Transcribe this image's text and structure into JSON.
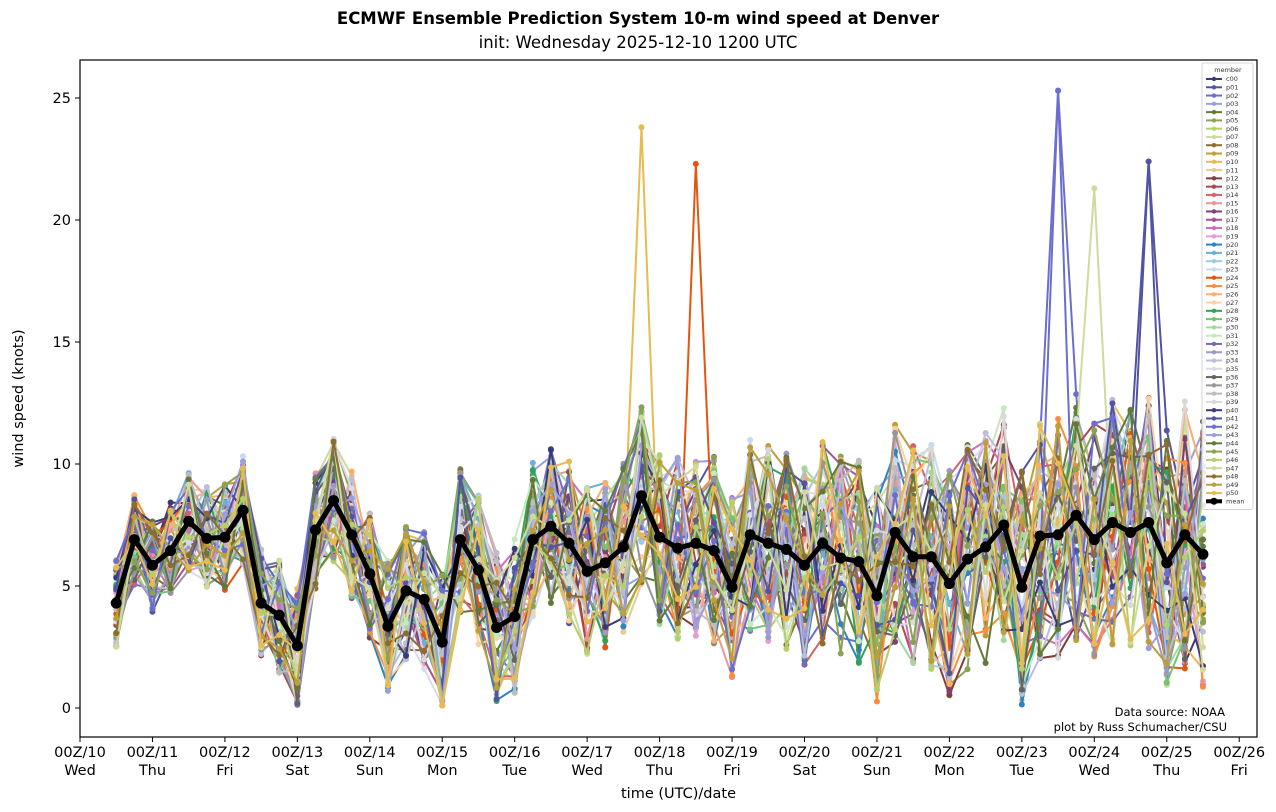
{
  "chart_data": {
    "type": "line",
    "title": "ECMWF Ensemble Prediction System 10-m wind speed at Denver",
    "subtitle": "init: Wednesday 2025-12-10 1200 UTC",
    "xlabel": "time (UTC)/date",
    "ylabel": "wind speed (knots)",
    "ylim": [
      -1.2,
      26.5
    ],
    "yticks": [
      0,
      5,
      10,
      15,
      20,
      25
    ],
    "xlim_days": [
      -0.02,
      16.2
    ],
    "xticks": [
      {
        "top": "00Z/10",
        "bottom": "Wed"
      },
      {
        "top": "00Z/11",
        "bottom": "Thu"
      },
      {
        "top": "00Z/12",
        "bottom": "Fri"
      },
      {
        "top": "00Z/13",
        "bottom": "Sat"
      },
      {
        "top": "00Z/14",
        "bottom": "Sun"
      },
      {
        "top": "00Z/15",
        "bottom": "Mon"
      },
      {
        "top": "00Z/16",
        "bottom": "Tue"
      },
      {
        "top": "00Z/17",
        "bottom": "Wed"
      },
      {
        "top": "00Z/18",
        "bottom": "Thu"
      },
      {
        "top": "00Z/19",
        "bottom": "Fri"
      },
      {
        "top": "00Z/20",
        "bottom": "Sat"
      },
      {
        "top": "00Z/21",
        "bottom": "Sun"
      },
      {
        "top": "00Z/22",
        "bottom": "Mon"
      },
      {
        "top": "00Z/23",
        "bottom": "Tue"
      },
      {
        "top": "00Z/24",
        "bottom": "Wed"
      },
      {
        "top": "00Z/25",
        "bottom": "Thu"
      },
      {
        "top": "00Z/26",
        "bottom": "Fri"
      }
    ],
    "grid": false,
    "legend": {
      "title": "member",
      "placement": "top-right"
    },
    "time_step_hours": 6,
    "first_valid": "12Z/10",
    "mean": [
      4.3,
      6.9,
      5.85,
      6.45,
      7.65,
      6.95,
      7.0,
      8.1,
      4.3,
      3.8,
      2.55,
      7.3,
      8.5,
      7.1,
      5.5,
      3.35,
      4.8,
      4.45,
      2.7,
      6.9,
      5.65,
      3.3,
      3.75,
      6.9,
      7.45,
      6.75,
      5.6,
      5.95,
      6.6,
      8.7,
      7.0,
      6.55,
      6.75,
      6.45,
      4.95,
      7.1,
      6.75,
      6.5,
      5.85,
      6.75,
      6.15,
      6.0,
      4.6,
      7.2,
      6.2,
      6.2,
      5.1,
      6.1,
      6.6,
      7.5,
      4.95,
      7.05,
      7.1,
      7.9,
      6.9,
      7.6,
      7.2,
      7.6,
      5.95,
      7.1,
      6.3
    ],
    "members": [
      {
        "name": "c00",
        "color": "#393b79"
      },
      {
        "name": "p01",
        "color": "#5254a3"
      },
      {
        "name": "p02",
        "color": "#6b6ecf"
      },
      {
        "name": "p03",
        "color": "#9c9ede"
      },
      {
        "name": "p04",
        "color": "#637939"
      },
      {
        "name": "p05",
        "color": "#8ca252"
      },
      {
        "name": "p06",
        "color": "#b5cf6b"
      },
      {
        "name": "p07",
        "color": "#cedb9c"
      },
      {
        "name": "p08",
        "color": "#8c6d31"
      },
      {
        "name": "p09",
        "color": "#bd9e39"
      },
      {
        "name": "p10",
        "color": "#e7ba52"
      },
      {
        "name": "p11",
        "color": "#e7cb94"
      },
      {
        "name": "p12",
        "color": "#843c39"
      },
      {
        "name": "p13",
        "color": "#ad494a"
      },
      {
        "name": "p14",
        "color": "#d6616b"
      },
      {
        "name": "p15",
        "color": "#e7969c"
      },
      {
        "name": "p16",
        "color": "#7b4173"
      },
      {
        "name": "p17",
        "color": "#a55194"
      },
      {
        "name": "p18",
        "color": "#ce6dbd"
      },
      {
        "name": "p19",
        "color": "#de9ed6"
      },
      {
        "name": "p20",
        "color": "#3182bd"
      },
      {
        "name": "p21",
        "color": "#6baed6"
      },
      {
        "name": "p22",
        "color": "#9ecae1"
      },
      {
        "name": "p23",
        "color": "#c6dbef"
      },
      {
        "name": "p24",
        "color": "#e6550d"
      },
      {
        "name": "p25",
        "color": "#fd8d3c"
      },
      {
        "name": "p26",
        "color": "#fdae6b"
      },
      {
        "name": "p27",
        "color": "#fdd0a2"
      },
      {
        "name": "p28",
        "color": "#31a354"
      },
      {
        "name": "p29",
        "color": "#74c476"
      },
      {
        "name": "p30",
        "color": "#a1d99b"
      },
      {
        "name": "p31",
        "color": "#c7e9c0"
      },
      {
        "name": "p32",
        "color": "#756bb1"
      },
      {
        "name": "p33",
        "color": "#9e9ac8"
      },
      {
        "name": "p34",
        "color": "#bcbddc"
      },
      {
        "name": "p35",
        "color": "#dadaeb"
      },
      {
        "name": "p36",
        "color": "#636363"
      },
      {
        "name": "p37",
        "color": "#969696"
      },
      {
        "name": "p38",
        "color": "#bdbdbd"
      },
      {
        "name": "p39",
        "color": "#d9d9d9"
      },
      {
        "name": "p40",
        "color": "#393b79"
      },
      {
        "name": "p41",
        "color": "#5254a3"
      },
      {
        "name": "p42",
        "color": "#6b6ecf"
      },
      {
        "name": "p43",
        "color": "#9c9ede"
      },
      {
        "name": "p44",
        "color": "#637939"
      },
      {
        "name": "p45",
        "color": "#8ca252"
      },
      {
        "name": "p46",
        "color": "#b5cf6b"
      },
      {
        "name": "p47",
        "color": "#cedb9c"
      },
      {
        "name": "p48",
        "color": "#8c6d31"
      },
      {
        "name": "p49",
        "color": "#bd9e39"
      },
      {
        "name": "p50",
        "color": "#e7ba52"
      }
    ],
    "mean_label": "mean",
    "mean_color": "#000000",
    "notable_peaks": [
      {
        "member_color": "#6b6ecf",
        "time": "12Z/23",
        "value": 25.3
      },
      {
        "member_color": "#e7ba52",
        "time": "18Z/17",
        "value": 23.8
      },
      {
        "member_color": "#5254a3",
        "time": "18Z/24",
        "value": 22.4
      },
      {
        "member_color": "#e6550d",
        "time": "12Z/18",
        "value": 22.3
      },
      {
        "member_color": "#cedb9c",
        "time": "00Z/24",
        "value": 21.3
      }
    ]
  },
  "credits": {
    "line1": "Data source: NOAA",
    "line2": "plot by Russ Schumacher/CSU"
  }
}
